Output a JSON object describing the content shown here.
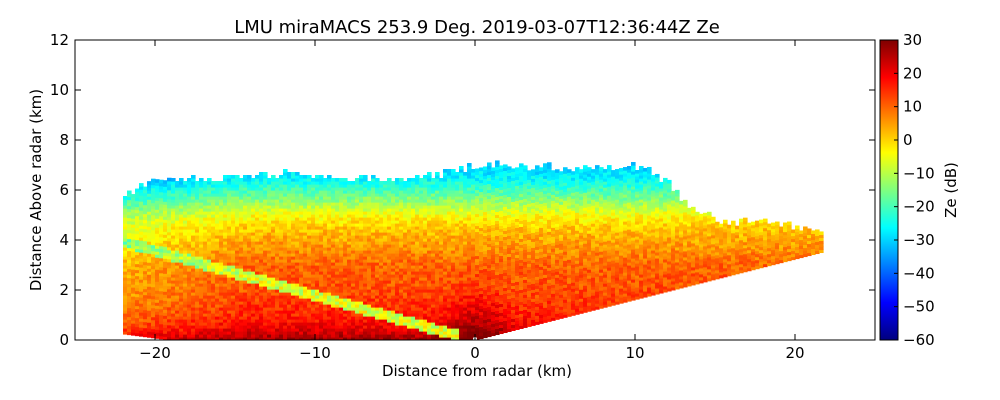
{
  "chart_data": {
    "type": "heatmap",
    "title": "LMU miraMACS 253.9 Deg. 2019-03-07T12:36:44Z  Ze",
    "xlabel": "Distance from radar (km)",
    "ylabel": "Distance Above radar  (km)",
    "xlim": [
      -25,
      25
    ],
    "ylim": [
      0,
      12
    ],
    "xticks": [
      -20,
      -10,
      0,
      10,
      20
    ],
    "xtick_labels": [
      "−20",
      "−10",
      "0",
      "10",
      "20"
    ],
    "yticks": [
      0,
      2,
      4,
      6,
      8,
      10,
      12
    ],
    "ytick_labels": [
      "0",
      "2",
      "4",
      "6",
      "8",
      "10",
      "12"
    ],
    "grid": false,
    "colorbar": {
      "label": "Ze (dB)",
      "min": -60,
      "max": 30,
      "ticks": [
        30,
        20,
        10,
        0,
        -10,
        -20,
        -30,
        -40,
        -50,
        -60
      ],
      "tick_labels": [
        "30",
        "20",
        "10",
        "0",
        "−10",
        "−20",
        "−30",
        "−40",
        "−50",
        "−60"
      ],
      "colormap": "jet"
    },
    "scan": {
      "radar_position_km": [
        0,
        0
      ],
      "left_edge_x_km": -22,
      "right_edge_x_km": 21.7,
      "right_edge_top_km": 4.1,
      "right_edge_bottom_km": 3.7,
      "cloud_top_km": [
        [
          -21.7,
          5.8
        ],
        [
          -20,
          6.3
        ],
        [
          -16,
          6.4
        ],
        [
          -12,
          6.6
        ],
        [
          -8,
          6.4
        ],
        [
          -4,
          6.4
        ],
        [
          0,
          6.9
        ],
        [
          4,
          6.9
        ],
        [
          8,
          6.8
        ],
        [
          10,
          6.9
        ],
        [
          12,
          6.3
        ],
        [
          13,
          5.5
        ],
        [
          14,
          5.1
        ],
        [
          15.5,
          4.6
        ],
        [
          18,
          4.7
        ],
        [
          21,
          4.4
        ]
      ],
      "reflectivity_profile_dB": [
        [
          0.0,
          28
        ],
        [
          0.5,
          20
        ],
        [
          1.0,
          16
        ],
        [
          1.5,
          14
        ],
        [
          2.0,
          12
        ],
        [
          2.5,
          11
        ],
        [
          3.0,
          10
        ],
        [
          3.5,
          7
        ],
        [
          4.0,
          4
        ],
        [
          4.5,
          1
        ],
        [
          5.0,
          -4
        ],
        [
          5.5,
          -12
        ],
        [
          6.0,
          -20
        ],
        [
          6.5,
          -27
        ],
        [
          7.0,
          -30
        ]
      ],
      "weak_echo_stripe_dB": -10
    }
  }
}
